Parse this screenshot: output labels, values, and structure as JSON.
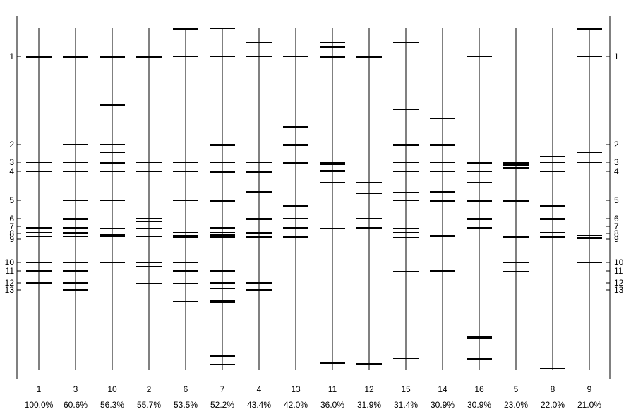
{
  "scale": {
    "marker_labels": [
      "1",
      "2",
      "3",
      "4",
      "5",
      "6",
      "7",
      "8",
      "9",
      "10",
      "11",
      "12",
      "13"
    ],
    "marker_positions": [
      1,
      2,
      3,
      4,
      5,
      6,
      7,
      8,
      9,
      10,
      11,
      12,
      13
    ]
  },
  "lanes": [
    {
      "id": "1",
      "percent": "100.0%",
      "bands": [
        {
          "p": 1,
          "w": 3
        },
        {
          "p": 2,
          "w": 1
        },
        {
          "p": 3,
          "w": 2
        },
        {
          "p": 4,
          "w": 2
        },
        {
          "p": 7.2,
          "w": 3
        },
        {
          "p": 7.9,
          "w": 2
        },
        {
          "p": 8.5,
          "w": 2
        },
        {
          "p": 10,
          "w": 2
        },
        {
          "p": 11,
          "w": 2
        },
        {
          "p": 12,
          "w": 3
        }
      ],
      "lane_top": 0.1,
      "lane_bottom": 20.3
    },
    {
      "id": "3",
      "percent": "60.6%",
      "bands": [
        {
          "p": 1,
          "w": 3
        },
        {
          "p": 2,
          "w": 2
        },
        {
          "p": 3,
          "w": 2
        },
        {
          "p": 4,
          "w": 2
        },
        {
          "p": 5,
          "w": 2
        },
        {
          "p": 6,
          "w": 3
        },
        {
          "p": 7.2,
          "w": 2
        },
        {
          "p": 7.9,
          "w": 3
        },
        {
          "p": 8.5,
          "w": 2
        },
        {
          "p": 10,
          "w": 2
        },
        {
          "p": 11,
          "w": 2
        },
        {
          "p": 12,
          "w": 2
        },
        {
          "p": 13,
          "w": 2
        }
      ],
      "lane_top": 0.1,
      "lane_bottom": 20.3
    },
    {
      "id": "10",
      "percent": "56.3%",
      "bands": [
        {
          "p": 1,
          "w": 3
        },
        {
          "p": 1.55,
          "w": 2
        },
        {
          "p": 2,
          "w": 2
        },
        {
          "p": 2.45,
          "w": 1
        },
        {
          "p": 3,
          "w": 3
        },
        {
          "p": 4,
          "w": 2
        },
        {
          "p": 5,
          "w": 1
        },
        {
          "p": 7.2,
          "w": 1
        },
        {
          "p": 8.3,
          "w": 2
        },
        {
          "p": 8.55,
          "w": 1
        },
        {
          "p": 10,
          "w": 1
        },
        {
          "p": 19.8,
          "w": 1
        }
      ],
      "lane_top": 0.1,
      "lane_bottom": 20.3
    },
    {
      "id": "2",
      "percent": "55.7%",
      "bands": [
        {
          "p": 1,
          "w": 3
        },
        {
          "p": 2,
          "w": 1
        },
        {
          "p": 3,
          "w": 1
        },
        {
          "p": 4,
          "w": 1
        },
        {
          "p": 6,
          "w": 2
        },
        {
          "p": 6.4,
          "w": 1
        },
        {
          "p": 7.2,
          "w": 1
        },
        {
          "p": 7.9,
          "w": 1
        },
        {
          "p": 8.5,
          "w": 1
        },
        {
          "p": 10,
          "w": 1
        },
        {
          "p": 10.5,
          "w": 2
        },
        {
          "p": 12,
          "w": 1
        }
      ],
      "lane_top": 0.1,
      "lane_bottom": 20.3
    },
    {
      "id": "6",
      "percent": "53.5%",
      "bands": [
        {
          "p": 0.0,
          "w": 3
        },
        {
          "p": 1,
          "w": 1
        },
        {
          "p": 2,
          "w": 1
        },
        {
          "p": 3,
          "w": 2
        },
        {
          "p": 4,
          "w": 2
        },
        {
          "p": 5,
          "w": 1
        },
        {
          "p": 7.9,
          "w": 2
        },
        {
          "p": 8.3,
          "w": 1
        },
        {
          "p": 8.6,
          "w": 3
        },
        {
          "p": 10,
          "w": 2
        },
        {
          "p": 11,
          "w": 2
        },
        {
          "p": 12,
          "w": 1
        },
        {
          "p": 14,
          "w": 1
        },
        {
          "p": 18.9,
          "w": 1
        }
      ],
      "lane_top": 0.0,
      "lane_bottom": 20.3
    },
    {
      "id": "7",
      "percent": "52.2%",
      "bands": [
        {
          "p": 0.0,
          "w": 2
        },
        {
          "p": 1,
          "w": 1
        },
        {
          "p": 2,
          "w": 3
        },
        {
          "p": 3,
          "w": 2
        },
        {
          "p": 4,
          "w": 3
        },
        {
          "p": 5,
          "w": 3
        },
        {
          "p": 7.2,
          "w": 2
        },
        {
          "p": 7.9,
          "w": 2
        },
        {
          "p": 8.3,
          "w": 2
        },
        {
          "p": 8.6,
          "w": 3
        },
        {
          "p": 11,
          "w": 2
        },
        {
          "p": 12,
          "w": 2
        },
        {
          "p": 12.8,
          "w": 2
        },
        {
          "p": 14,
          "w": 3
        },
        {
          "p": 19.0,
          "w": 2
        },
        {
          "p": 19.8,
          "w": 2
        }
      ],
      "lane_top": 0.0,
      "lane_bottom": 20.3
    },
    {
      "id": "4",
      "percent": "43.4%",
      "bands": [
        {
          "p": 0.3,
          "w": 1
        },
        {
          "p": 0.5,
          "w": 1
        },
        {
          "p": 1,
          "w": 1
        },
        {
          "p": 3,
          "w": 2
        },
        {
          "p": 4,
          "w": 3
        },
        {
          "p": 4.7,
          "w": 2
        },
        {
          "p": 6,
          "w": 3
        },
        {
          "p": 7.9,
          "w": 3
        },
        {
          "p": 8.6,
          "w": 3
        },
        {
          "p": 12,
          "w": 3
        },
        {
          "p": 13,
          "w": 2
        }
      ],
      "lane_top": 0.1,
      "lane_bottom": 20.3
    },
    {
      "id": "13",
      "percent": "42.0%",
      "bands": [
        {
          "p": 1,
          "w": 1
        },
        {
          "p": 1.8,
          "w": 2
        },
        {
          "p": 2,
          "w": 3
        },
        {
          "p": 3,
          "w": 3
        },
        {
          "p": 5.3,
          "w": 2
        },
        {
          "p": 6,
          "w": 2
        },
        {
          "p": 7.2,
          "w": 3
        },
        {
          "p": 8.6,
          "w": 2
        }
      ],
      "lane_top": 0.1,
      "lane_bottom": 20.3
    },
    {
      "id": "11",
      "percent": "36.0%",
      "bands": [
        {
          "p": 0.5,
          "w": 2
        },
        {
          "p": 0.65,
          "w": 3
        },
        {
          "p": 1,
          "w": 3
        },
        {
          "p": 3,
          "w": 2
        },
        {
          "p": 3.15,
          "w": 3
        },
        {
          "p": 3.9,
          "w": 3
        },
        {
          "p": 4.4,
          "w": 2
        },
        {
          "p": 6.6,
          "w": 1
        },
        {
          "p": 7.2,
          "w": 1
        },
        {
          "p": 19.6,
          "w": 3
        }
      ],
      "lane_top": 0.1,
      "lane_bottom": 20.3
    },
    {
      "id": "12",
      "percent": "31.9%",
      "bands": [
        {
          "p": 1,
          "w": 3
        },
        {
          "p": 4.4,
          "w": 2
        },
        {
          "p": 4.75,
          "w": 1
        },
        {
          "p": 6,
          "w": 2
        },
        {
          "p": 7.2,
          "w": 2
        },
        {
          "p": 19.7,
          "w": 3
        }
      ],
      "lane_top": 0.1,
      "lane_bottom": 20.3
    },
    {
      "id": "15",
      "percent": "31.4%",
      "bands": [
        {
          "p": 0.5,
          "w": 1
        },
        {
          "p": 1.6,
          "w": 1
        },
        {
          "p": 2,
          "w": 3
        },
        {
          "p": 3,
          "w": 1
        },
        {
          "p": 4,
          "w": 1
        },
        {
          "p": 4.7,
          "w": 1
        },
        {
          "p": 5,
          "w": 1
        },
        {
          "p": 6,
          "w": 1
        },
        {
          "p": 7.2,
          "w": 1
        },
        {
          "p": 7.9,
          "w": 2
        },
        {
          "p": 8.6,
          "w": 1
        },
        {
          "p": 11,
          "w": 1
        },
        {
          "p": 19.2,
          "w": 1
        },
        {
          "p": 19.6,
          "w": 1
        }
      ],
      "lane_top": 0.1,
      "lane_bottom": 20.3
    },
    {
      "id": "14",
      "percent": "30.9%",
      "bands": [
        {
          "p": 1.7,
          "w": 1
        },
        {
          "p": 2,
          "w": 3
        },
        {
          "p": 3,
          "w": 2
        },
        {
          "p": 4,
          "w": 2
        },
        {
          "p": 4.4,
          "w": 1
        },
        {
          "p": 4.7,
          "w": 2
        },
        {
          "p": 5,
          "w": 3
        },
        {
          "p": 6,
          "w": 1
        },
        {
          "p": 7.9,
          "w": 1
        },
        {
          "p": 8.2,
          "w": 1
        },
        {
          "p": 8.5,
          "w": 1
        },
        {
          "p": 8.75,
          "w": 1
        },
        {
          "p": 11,
          "w": 2
        }
      ],
      "lane_top": 0.1,
      "lane_bottom": 20.3
    },
    {
      "id": "16",
      "percent": "30.9%",
      "bands": [
        {
          "p": 1,
          "w": 2
        },
        {
          "p": 3,
          "w": 3
        },
        {
          "p": 4,
          "w": 1
        },
        {
          "p": 4.4,
          "w": 2
        },
        {
          "p": 5,
          "w": 3
        },
        {
          "p": 6,
          "w": 3
        },
        {
          "p": 7.2,
          "w": 3
        },
        {
          "p": 17.3,
          "w": 3
        },
        {
          "p": 19.3,
          "w": 3
        }
      ],
      "lane_top": 0.1,
      "lane_bottom": 20.3
    },
    {
      "id": "5",
      "percent": "23.0%",
      "bands": [
        {
          "p": 3,
          "w": 3
        },
        {
          "p": 3.2,
          "w": 3
        },
        {
          "p": 3.4,
          "w": 2
        },
        {
          "p": 3.6,
          "w": 2
        },
        {
          "p": 5,
          "w": 3
        },
        {
          "p": 8.6,
          "w": 3
        },
        {
          "p": 10,
          "w": 2
        },
        {
          "p": 11,
          "w": 1
        }
      ],
      "lane_top": 3.0,
      "lane_bottom": 20.3
    },
    {
      "id": "8",
      "percent": "22.0%",
      "bands": [
        {
          "p": 2.65,
          "w": 1
        },
        {
          "p": 3,
          "w": 2
        },
        {
          "p": 4,
          "w": 1
        },
        {
          "p": 5.3,
          "w": 3
        },
        {
          "p": 6,
          "w": 3
        },
        {
          "p": 7.9,
          "w": 2
        },
        {
          "p": 8.6,
          "w": 3
        },
        {
          "p": 20.1,
          "w": 1
        }
      ],
      "lane_top": 2.65,
      "lane_bottom": 20.3
    },
    {
      "id": "9",
      "percent": "21.0%",
      "bands": [
        {
          "p": 0.0,
          "w": 3
        },
        {
          "p": 0.55,
          "w": 1
        },
        {
          "p": 1,
          "w": 1
        },
        {
          "p": 2.45,
          "w": 1
        },
        {
          "p": 3,
          "w": 1
        },
        {
          "p": 8.3,
          "w": 1
        },
        {
          "p": 8.6,
          "w": 1
        },
        {
          "p": 8.9,
          "w": 1
        },
        {
          "p": 10,
          "w": 2
        }
      ],
      "lane_top": 0.0,
      "lane_bottom": 20.3
    }
  ]
}
